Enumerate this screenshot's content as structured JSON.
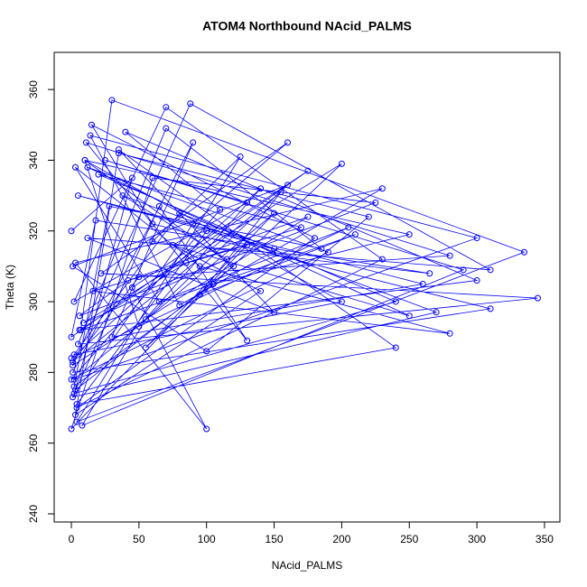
{
  "chart_data": {
    "type": "line",
    "markers": true,
    "title": "ATOM4 Northbound NAcid_PALMS",
    "xlabel": "NAcid_PALMS",
    "ylabel": "Theta (K)",
    "color": "#0000ff",
    "xlim": [
      -12.7,
      361.4
    ],
    "ylim": [
      237.7,
      370.5
    ],
    "xticks": [
      0,
      50,
      100,
      150,
      200,
      250,
      300,
      350
    ],
    "yticks": [
      240,
      260,
      280,
      300,
      320,
      340,
      360
    ],
    "x": [
      0,
      45,
      3,
      120,
      10,
      200,
      2,
      80,
      150,
      5,
      260,
      30,
      90,
      1,
      310,
      60,
      15,
      180,
      4,
      230,
      70,
      2,
      130,
      25,
      290,
      8,
      55,
      160,
      1,
      100,
      220,
      35,
      3,
      140,
      75,
      250,
      12,
      190,
      0,
      110,
      40,
      300,
      6,
      85,
      170,
      20,
      240,
      2,
      65,
      130,
      11,
      280,
      50,
      1,
      155,
      95,
      210,
      7,
      30,
      335,
      4,
      125,
      60,
      265,
      18,
      0,
      175,
      45,
      100,
      3,
      230,
      80,
      14,
      300,
      2,
      150,
      55,
      200,
      9,
      115,
      38,
      270,
      1,
      90,
      160,
      22,
      345,
      5,
      70,
      185,
      28,
      2,
      105,
      250,
      10,
      50,
      140,
      0,
      205,
      65,
      3,
      95,
      280,
      16,
      130,
      0,
      60,
      225,
      6,
      42,
      175,
      1,
      88,
      310,
      12,
      150,
      35,
      240,
      4,
      100
    ],
    "series": [
      {
        "name": "Theta",
        "values": [
          320,
          335,
          275,
          310,
          340,
          300,
          285,
          325,
          315,
          330,
          305,
          290,
          345,
          280,
          298,
          322,
          350,
          318,
          270,
          312,
          355,
          300,
          328,
          340,
          309,
          265,
          295,
          333,
          310,
          286,
          324,
          342,
          268,
          303,
          316,
          296,
          338,
          314,
          278,
          326,
          348,
          306,
          292,
          311,
          321,
          336,
          300,
          274,
          327,
          289,
          345,
          313,
          307,
          283,
          331,
          302,
          319,
          292,
          357,
          314,
          266,
          341,
          317,
          308,
          323,
          290,
          337,
          304,
          264,
          311,
          332,
          299,
          347,
          318,
          278,
          325,
          287,
          339,
          294,
          312,
          330,
          297,
          273,
          322,
          345,
          308,
          301,
          288,
          349,
          315,
          327,
          276,
          305,
          319,
          340,
          293,
          332,
          284,
          321,
          300,
          338,
          310,
          291,
          303,
          316,
          264,
          335,
          328,
          296,
          306,
          324,
          282,
          356,
          309,
          318,
          297,
          343,
          287,
          271,
          320
        ]
      }
    ]
  }
}
